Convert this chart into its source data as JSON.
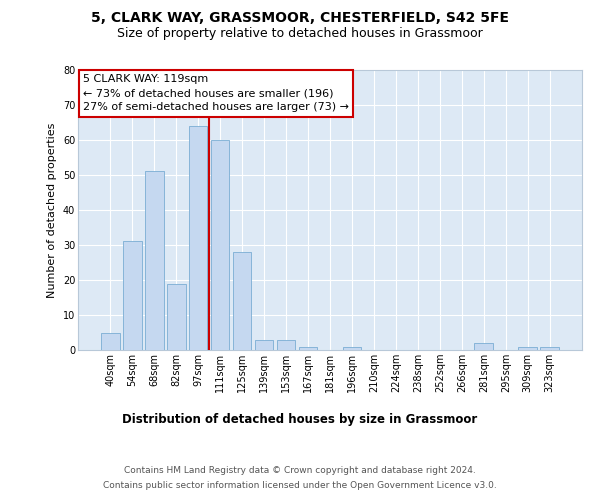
{
  "title_line1": "5, CLARK WAY, GRASSMOOR, CHESTERFIELD, S42 5FE",
  "title_line2": "Size of property relative to detached houses in Grassmoor",
  "xlabel": "Distribution of detached houses by size in Grassmoor",
  "ylabel": "Number of detached properties",
  "categories": [
    "40sqm",
    "54sqm",
    "68sqm",
    "82sqm",
    "97sqm",
    "111sqm",
    "125sqm",
    "139sqm",
    "153sqm",
    "167sqm",
    "181sqm",
    "196sqm",
    "210sqm",
    "224sqm",
    "238sqm",
    "252sqm",
    "266sqm",
    "281sqm",
    "295sqm",
    "309sqm",
    "323sqm"
  ],
  "values": [
    5,
    31,
    51,
    19,
    64,
    60,
    28,
    3,
    3,
    1,
    0,
    1,
    0,
    0,
    0,
    0,
    0,
    2,
    0,
    1,
    1
  ],
  "bar_color": "#c5d8f0",
  "bar_edge_color": "#7aadd4",
  "vline_color": "#cc0000",
  "vline_x": 4.5,
  "annotation_text": "5 CLARK WAY: 119sqm\n← 73% of detached houses are smaller (196)\n27% of semi-detached houses are larger (73) →",
  "annotation_box_edgecolor": "#cc0000",
  "ylim": [
    0,
    80
  ],
  "yticks": [
    0,
    10,
    20,
    30,
    40,
    50,
    60,
    70,
    80
  ],
  "background_color": "#dde9f5",
  "grid_color": "#ffffff",
  "title_fontsize": 10,
  "subtitle_fontsize": 9,
  "axis_label_fontsize": 8.5,
  "tick_fontsize": 7,
  "annotation_fontsize": 8,
  "footer_fontsize": 6.5,
  "ylabel_fontsize": 8,
  "footer_line1": "Contains HM Land Registry data © Crown copyright and database right 2024.",
  "footer_line2": "Contains public sector information licensed under the Open Government Licence v3.0."
}
